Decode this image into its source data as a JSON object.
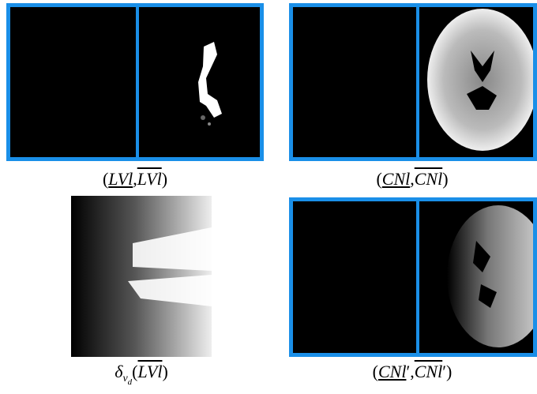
{
  "captions": [
    [
      "(",
      "LVl",
      ",",
      "LVl",
      ")"
    ],
    [
      "(",
      "CNl",
      ",",
      "CNl",
      ")"
    ],
    [
      "δ",
      "ν",
      "d",
      "(",
      "LVl",
      ")"
    ],
    [
      "(",
      "CNl",
      "′",
      ",",
      "CNl",
      "′",
      ")"
    ]
  ]
}
